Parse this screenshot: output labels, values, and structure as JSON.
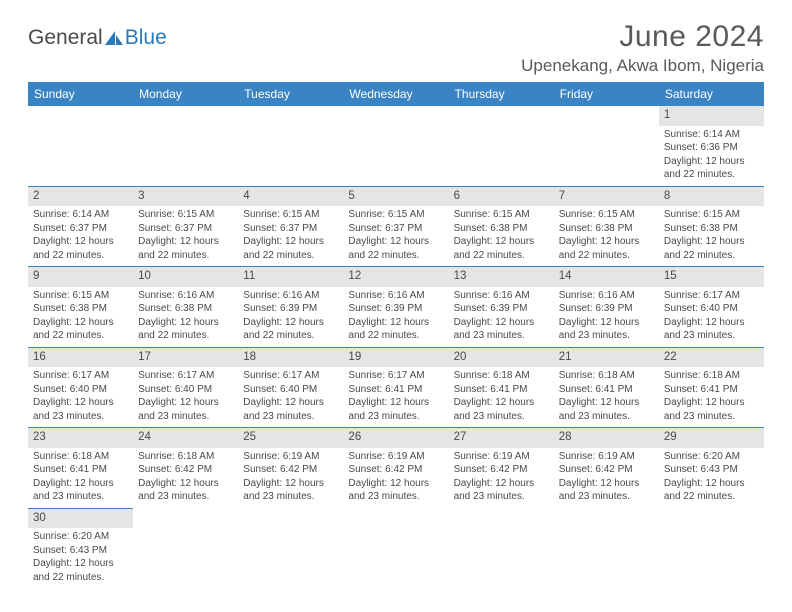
{
  "logo": {
    "text_general": "General",
    "text_blue": "Blue",
    "icon_color": "#2a7ab8"
  },
  "header": {
    "month_title": "June 2024",
    "location": "Upenekang, Akwa Ibom, Nigeria"
  },
  "colors": {
    "header_bg": "#3b84c4",
    "header_text": "#ffffff",
    "daynum_bg": "#e5e5e5",
    "text": "#4a4a4a",
    "row_divider": "#3b84c4"
  },
  "weekdays": [
    "Sunday",
    "Monday",
    "Tuesday",
    "Wednesday",
    "Thursday",
    "Friday",
    "Saturday"
  ],
  "weeks": [
    [
      null,
      null,
      null,
      null,
      null,
      null,
      {
        "day": "1",
        "sunrise": "Sunrise: 6:14 AM",
        "sunset": "Sunset: 6:36 PM",
        "daylight1": "Daylight: 12 hours",
        "daylight2": "and 22 minutes."
      }
    ],
    [
      {
        "day": "2",
        "sunrise": "Sunrise: 6:14 AM",
        "sunset": "Sunset: 6:37 PM",
        "daylight1": "Daylight: 12 hours",
        "daylight2": "and 22 minutes."
      },
      {
        "day": "3",
        "sunrise": "Sunrise: 6:15 AM",
        "sunset": "Sunset: 6:37 PM",
        "daylight1": "Daylight: 12 hours",
        "daylight2": "and 22 minutes."
      },
      {
        "day": "4",
        "sunrise": "Sunrise: 6:15 AM",
        "sunset": "Sunset: 6:37 PM",
        "daylight1": "Daylight: 12 hours",
        "daylight2": "and 22 minutes."
      },
      {
        "day": "5",
        "sunrise": "Sunrise: 6:15 AM",
        "sunset": "Sunset: 6:37 PM",
        "daylight1": "Daylight: 12 hours",
        "daylight2": "and 22 minutes."
      },
      {
        "day": "6",
        "sunrise": "Sunrise: 6:15 AM",
        "sunset": "Sunset: 6:38 PM",
        "daylight1": "Daylight: 12 hours",
        "daylight2": "and 22 minutes."
      },
      {
        "day": "7",
        "sunrise": "Sunrise: 6:15 AM",
        "sunset": "Sunset: 6:38 PM",
        "daylight1": "Daylight: 12 hours",
        "daylight2": "and 22 minutes."
      },
      {
        "day": "8",
        "sunrise": "Sunrise: 6:15 AM",
        "sunset": "Sunset: 6:38 PM",
        "daylight1": "Daylight: 12 hours",
        "daylight2": "and 22 minutes."
      }
    ],
    [
      {
        "day": "9",
        "sunrise": "Sunrise: 6:15 AM",
        "sunset": "Sunset: 6:38 PM",
        "daylight1": "Daylight: 12 hours",
        "daylight2": "and 22 minutes."
      },
      {
        "day": "10",
        "sunrise": "Sunrise: 6:16 AM",
        "sunset": "Sunset: 6:38 PM",
        "daylight1": "Daylight: 12 hours",
        "daylight2": "and 22 minutes."
      },
      {
        "day": "11",
        "sunrise": "Sunrise: 6:16 AM",
        "sunset": "Sunset: 6:39 PM",
        "daylight1": "Daylight: 12 hours",
        "daylight2": "and 22 minutes."
      },
      {
        "day": "12",
        "sunrise": "Sunrise: 6:16 AM",
        "sunset": "Sunset: 6:39 PM",
        "daylight1": "Daylight: 12 hours",
        "daylight2": "and 22 minutes."
      },
      {
        "day": "13",
        "sunrise": "Sunrise: 6:16 AM",
        "sunset": "Sunset: 6:39 PM",
        "daylight1": "Daylight: 12 hours",
        "daylight2": "and 23 minutes."
      },
      {
        "day": "14",
        "sunrise": "Sunrise: 6:16 AM",
        "sunset": "Sunset: 6:39 PM",
        "daylight1": "Daylight: 12 hours",
        "daylight2": "and 23 minutes."
      },
      {
        "day": "15",
        "sunrise": "Sunrise: 6:17 AM",
        "sunset": "Sunset: 6:40 PM",
        "daylight1": "Daylight: 12 hours",
        "daylight2": "and 23 minutes."
      }
    ],
    [
      {
        "day": "16",
        "sunrise": "Sunrise: 6:17 AM",
        "sunset": "Sunset: 6:40 PM",
        "daylight1": "Daylight: 12 hours",
        "daylight2": "and 23 minutes."
      },
      {
        "day": "17",
        "sunrise": "Sunrise: 6:17 AM",
        "sunset": "Sunset: 6:40 PM",
        "daylight1": "Daylight: 12 hours",
        "daylight2": "and 23 minutes."
      },
      {
        "day": "18",
        "sunrise": "Sunrise: 6:17 AM",
        "sunset": "Sunset: 6:40 PM",
        "daylight1": "Daylight: 12 hours",
        "daylight2": "and 23 minutes."
      },
      {
        "day": "19",
        "sunrise": "Sunrise: 6:17 AM",
        "sunset": "Sunset: 6:41 PM",
        "daylight1": "Daylight: 12 hours",
        "daylight2": "and 23 minutes."
      },
      {
        "day": "20",
        "sunrise": "Sunrise: 6:18 AM",
        "sunset": "Sunset: 6:41 PM",
        "daylight1": "Daylight: 12 hours",
        "daylight2": "and 23 minutes."
      },
      {
        "day": "21",
        "sunrise": "Sunrise: 6:18 AM",
        "sunset": "Sunset: 6:41 PM",
        "daylight1": "Daylight: 12 hours",
        "daylight2": "and 23 minutes."
      },
      {
        "day": "22",
        "sunrise": "Sunrise: 6:18 AM",
        "sunset": "Sunset: 6:41 PM",
        "daylight1": "Daylight: 12 hours",
        "daylight2": "and 23 minutes."
      }
    ],
    [
      {
        "day": "23",
        "sunrise": "Sunrise: 6:18 AM",
        "sunset": "Sunset: 6:41 PM",
        "daylight1": "Daylight: 12 hours",
        "daylight2": "and 23 minutes."
      },
      {
        "day": "24",
        "sunrise": "Sunrise: 6:18 AM",
        "sunset": "Sunset: 6:42 PM",
        "daylight1": "Daylight: 12 hours",
        "daylight2": "and 23 minutes."
      },
      {
        "day": "25",
        "sunrise": "Sunrise: 6:19 AM",
        "sunset": "Sunset: 6:42 PM",
        "daylight1": "Daylight: 12 hours",
        "daylight2": "and 23 minutes."
      },
      {
        "day": "26",
        "sunrise": "Sunrise: 6:19 AM",
        "sunset": "Sunset: 6:42 PM",
        "daylight1": "Daylight: 12 hours",
        "daylight2": "and 23 minutes."
      },
      {
        "day": "27",
        "sunrise": "Sunrise: 6:19 AM",
        "sunset": "Sunset: 6:42 PM",
        "daylight1": "Daylight: 12 hours",
        "daylight2": "and 23 minutes."
      },
      {
        "day": "28",
        "sunrise": "Sunrise: 6:19 AM",
        "sunset": "Sunset: 6:42 PM",
        "daylight1": "Daylight: 12 hours",
        "daylight2": "and 23 minutes."
      },
      {
        "day": "29",
        "sunrise": "Sunrise: 6:20 AM",
        "sunset": "Sunset: 6:43 PM",
        "daylight1": "Daylight: 12 hours",
        "daylight2": "and 22 minutes."
      }
    ],
    [
      {
        "day": "30",
        "sunrise": "Sunrise: 6:20 AM",
        "sunset": "Sunset: 6:43 PM",
        "daylight1": "Daylight: 12 hours",
        "daylight2": "and 22 minutes."
      },
      null,
      null,
      null,
      null,
      null,
      null
    ]
  ]
}
